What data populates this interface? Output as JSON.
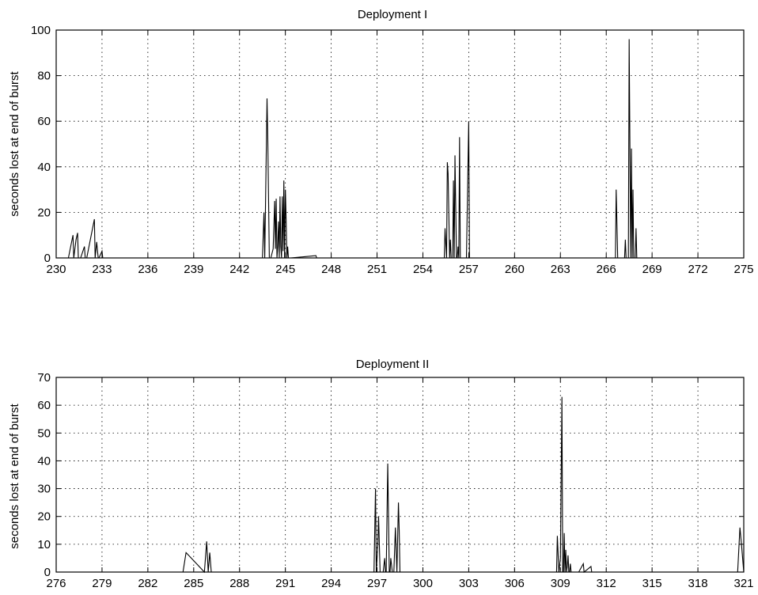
{
  "chart_data": [
    {
      "type": "line",
      "title": "Deployment I",
      "xlabel": "",
      "ylabel": "seconds lost at end of burst",
      "xlim": [
        230,
        275
      ],
      "ylim": [
        0,
        100
      ],
      "grid": true,
      "x_ticks": [
        230,
        233,
        236,
        239,
        242,
        245,
        248,
        251,
        254,
        257,
        260,
        263,
        266,
        269,
        272,
        275
      ],
      "y_ticks": [
        0,
        20,
        40,
        60,
        80,
        100
      ],
      "x": [
        230.8,
        231.1,
        231.15,
        231.3,
        231.4,
        231.45,
        231.6,
        231.85,
        231.9,
        232.0,
        232.5,
        232.55,
        232.65,
        232.75,
        232.8,
        233.0,
        233.05,
        233.1,
        243.5,
        243.6,
        243.65,
        243.8,
        243.85,
        243.95,
        244.0,
        244.05,
        244.2,
        244.3,
        244.35,
        244.4,
        244.45,
        244.5,
        244.55,
        244.6,
        244.65,
        244.7,
        244.75,
        244.8,
        244.85,
        244.9,
        244.95,
        245.0,
        245.05,
        245.1,
        245.15,
        245.2,
        245.25,
        245.35,
        247.0,
        247.05,
        255.4,
        255.45,
        255.55,
        255.6,
        255.65,
        255.75,
        255.8,
        255.85,
        255.95,
        256.0,
        256.05,
        256.1,
        256.2,
        256.25,
        256.3,
        256.35,
        256.4,
        256.45,
        256.55,
        256.6,
        256.65,
        256.75,
        256.8,
        256.85,
        257.0,
        257.05,
        257.1,
        257.2,
        266.6,
        266.65,
        266.75,
        266.8,
        267.2,
        267.25,
        267.3,
        267.35,
        267.45,
        267.5,
        267.55,
        267.6,
        267.65,
        267.7,
        267.75,
        267.8,
        267.85,
        267.9,
        267.95,
        268.0,
        268.1,
        268.15,
        268.2,
        268.3,
        268.35,
        268.9,
        268.95
      ],
      "y": [
        0,
        10,
        0,
        8,
        11,
        0,
        0,
        5,
        0,
        0,
        17,
        0,
        7,
        0,
        0,
        3,
        0,
        0,
        0,
        20,
        0,
        70,
        52,
        0,
        0,
        0,
        4,
        25,
        4,
        26,
        0,
        5,
        16,
        0,
        27,
        5,
        0,
        27,
        3,
        34,
        0,
        30,
        17,
        0,
        5,
        0,
        0,
        0,
        1,
        0,
        0,
        13,
        0,
        42,
        37,
        0,
        8,
        0,
        0,
        34,
        0,
        45,
        0,
        0,
        5,
        0,
        53,
        0,
        0,
        0,
        0,
        0,
        0,
        0,
        60,
        0,
        0,
        0,
        0,
        30,
        0,
        0,
        0,
        8,
        0,
        0,
        0,
        96,
        49,
        0,
        48,
        0,
        30,
        0,
        0,
        0,
        13,
        0,
        0,
        0,
        0,
        0,
        0,
        0,
        0
      ]
    },
    {
      "type": "line",
      "title": "Deployment II",
      "xlabel": "",
      "ylabel": "seconds lost at end of burst",
      "xlim": [
        276,
        321
      ],
      "ylim": [
        0,
        70
      ],
      "grid": true,
      "x_ticks": [
        276,
        279,
        282,
        285,
        288,
        291,
        294,
        297,
        300,
        303,
        306,
        309,
        312,
        315,
        318,
        321
      ],
      "y_ticks": [
        0,
        10,
        20,
        30,
        40,
        50,
        60,
        70
      ],
      "x": [
        284.3,
        284.5,
        285.7,
        285.85,
        285.95,
        286.05,
        286.15,
        286.25,
        296.8,
        296.9,
        296.95,
        297.0,
        297.05,
        297.1,
        297.2,
        297.25,
        297.3,
        297.4,
        297.5,
        297.55,
        297.6,
        297.7,
        297.75,
        297.8,
        297.85,
        297.9,
        298.0,
        298.05,
        298.1,
        298.2,
        298.3,
        298.4,
        298.45,
        298.5,
        298.8,
        308.75,
        308.8,
        308.9,
        309.0,
        309.1,
        309.15,
        309.2,
        309.25,
        309.3,
        309.35,
        309.4,
        309.45,
        309.5,
        309.55,
        309.6,
        309.65,
        309.7,
        309.75,
        309.8,
        309.9,
        310.0,
        310.05,
        310.2,
        310.5,
        310.55,
        311.0,
        311.05,
        320.6,
        320.75,
        320.85,
        321.0
      ],
      "y": [
        0,
        7,
        0,
        11,
        0,
        7,
        0,
        0,
        0,
        30,
        0,
        5,
        10,
        20,
        0,
        0,
        0,
        0,
        5,
        0,
        0,
        39,
        20,
        0,
        0,
        5,
        0,
        0,
        0,
        16,
        0,
        25,
        15,
        0,
        0,
        0,
        13,
        0,
        5,
        63,
        0,
        0,
        14,
        0,
        8,
        0,
        2,
        6,
        0,
        0,
        3,
        0,
        0,
        0,
        0,
        0,
        0,
        0,
        3,
        0,
        2,
        0,
        0,
        16,
        10,
        0
      ]
    }
  ]
}
